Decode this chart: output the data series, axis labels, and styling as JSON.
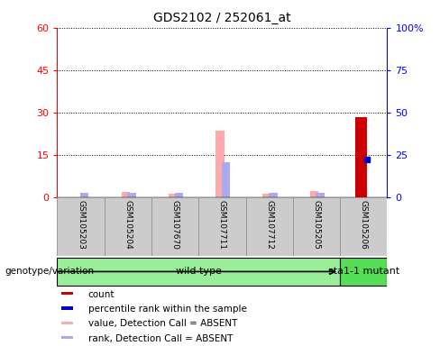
{
  "title": "GDS2102 / 252061_at",
  "samples": [
    "GSM105203",
    "GSM105204",
    "GSM107670",
    "GSM107711",
    "GSM107712",
    "GSM105205",
    "GSM105206"
  ],
  "groups": {
    "wild type": [
      0,
      1,
      2,
      3,
      4,
      5
    ],
    "sta1-1 mutant": [
      6
    ]
  },
  "count_values": [
    0,
    0,
    0,
    0,
    0,
    0,
    47
  ],
  "percentile_rank": [
    0,
    0,
    0,
    0,
    0,
    0,
    22
  ],
  "value_absent": [
    0,
    1.8,
    1.2,
    23.5,
    1.2,
    2.2,
    0
  ],
  "rank_absent": [
    1.5,
    1.5,
    1.5,
    12.5,
    1.5,
    1.5,
    0
  ],
  "ylim_left": [
    0,
    60
  ],
  "ylim_right": [
    0,
    100
  ],
  "yticks_left": [
    0,
    15,
    30,
    45,
    60
  ],
  "yticks_right": [
    0,
    25,
    50,
    75,
    100
  ],
  "yticklabels_right": [
    "0",
    "25",
    "50",
    "75",
    "100%"
  ],
  "colors": {
    "count": "#cc0000",
    "percentile_rank": "#0000cc",
    "value_absent": "#ffaaaa",
    "rank_absent": "#aaaaee",
    "wildtype_bg": "#99ee99",
    "mutant_bg": "#55dd55",
    "sample_box_bg": "#cccccc",
    "sample_box_border": "#999999",
    "plot_bg": "#ffffff"
  },
  "legend_items": [
    {
      "label": "count",
      "color": "#cc0000"
    },
    {
      "label": "percentile rank within the sample",
      "color": "#0000cc"
    },
    {
      "label": "value, Detection Call = ABSENT",
      "color": "#ffaaaa"
    },
    {
      "label": "rank, Detection Call = ABSENT",
      "color": "#aaaaee"
    }
  ],
  "group_label": "genotype/variation"
}
